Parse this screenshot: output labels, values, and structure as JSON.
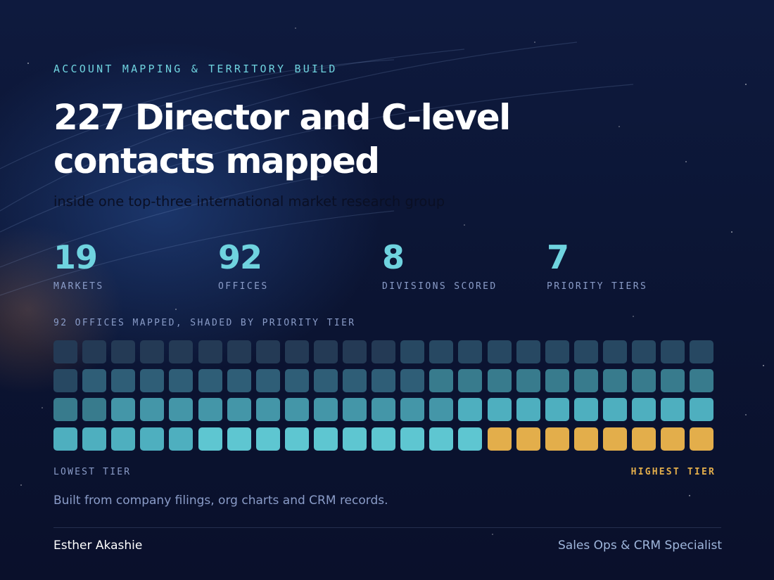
{
  "eyebrow": "ACCOUNT MAPPING & TERRITORY BUILD",
  "headline": "227 Director and C-level contacts mapped",
  "subhead": "inside one top-three international market research group",
  "stats": [
    {
      "value": "19",
      "label": "MARKETS"
    },
    {
      "value": "92",
      "label": "OFFICES"
    },
    {
      "value": "8",
      "label": "DIVISIONS SCORED"
    },
    {
      "value": "7",
      "label": "PRIORITY TIERS"
    }
  ],
  "grid": {
    "caption": "92 OFFICES MAPPED, SHADED BY PRIORITY TIER",
    "total_offices": 92,
    "rows": 4,
    "columns": 23,
    "tier_counts": [
      12,
      12,
      12,
      12,
      12,
      14,
      8
    ],
    "tier_colors": [
      "#243a55",
      "#274862",
      "#2f5e77",
      "#387b8d",
      "#4496a8",
      "#4eafbf",
      "#5ec6d1"
    ],
    "highlight_color": "#e3ae4b",
    "highlight_count": 8,
    "low_label": "LOWEST TIER",
    "high_label": "HIGHEST TIER"
  },
  "note": "Built from company filings, org charts and CRM records.",
  "footer": {
    "author": "Esther Akashie",
    "role": "Sales Ops & CRM Specialist"
  }
}
